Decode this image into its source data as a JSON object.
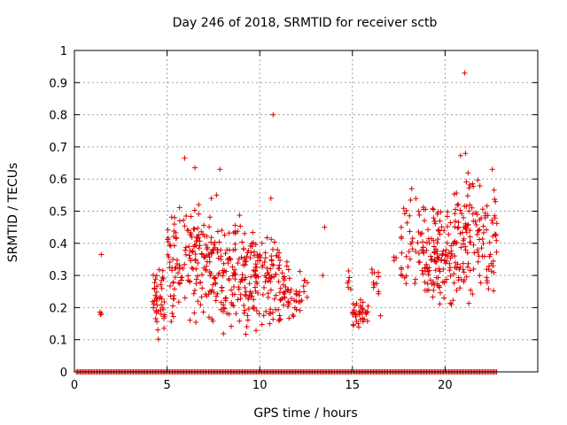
{
  "chart_data": {
    "type": "scatter",
    "title": "Day 246 of 2018, SRMTID for receiver sctb",
    "xlabel": "GPS time / hours",
    "ylabel": "SRMTID / TECUs",
    "xlim": [
      0,
      25
    ],
    "ylim": [
      0,
      1
    ],
    "grid": true,
    "x_ticks": [
      0,
      5,
      10,
      15,
      20
    ],
    "x_tick_labels": [
      "0",
      "5",
      "10",
      "15",
      "20"
    ],
    "y_ticks": [
      0,
      0.1,
      0.2,
      0.3,
      0.4,
      0.5,
      0.6,
      0.7,
      0.8,
      0.9,
      1
    ],
    "y_tick_labels": [
      "0",
      "0.1",
      "0.2",
      "0.3",
      "0.4",
      "0.5",
      "0.6",
      "0.7",
      "0.8",
      "0.9",
      "1"
    ],
    "marker": "+",
    "marker_color": "#dd0000",
    "zero_baseline": {
      "x_start": 0.1,
      "x_end": 22.8,
      "y": 0
    },
    "clusters": [
      {
        "x_range": [
          1.3,
          1.5
        ],
        "y_range": [
          0.17,
          0.19
        ],
        "count": 3
      },
      {
        "x_range": [
          4.2,
          4.9
        ],
        "y_range": [
          0.07,
          0.35
        ],
        "count": 45
      },
      {
        "x_range": [
          5.0,
          5.6
        ],
        "y_range": [
          0.14,
          0.5
        ],
        "count": 40
      },
      {
        "x_range": [
          5.6,
          6.4
        ],
        "y_range": [
          0.12,
          0.56
        ],
        "count": 40
      },
      {
        "x_range": [
          6.4,
          7.2
        ],
        "y_range": [
          0.12,
          0.55
        ],
        "count": 60
      },
      {
        "x_range": [
          7.2,
          8.3
        ],
        "y_range": [
          0.09,
          0.56
        ],
        "count": 75
      },
      {
        "x_range": [
          8.3,
          9.6
        ],
        "y_range": [
          0.09,
          0.5
        ],
        "count": 90
      },
      {
        "x_range": [
          9.6,
          11.1
        ],
        "y_range": [
          0.12,
          0.47
        ],
        "count": 100
      },
      {
        "x_range": [
          11.1,
          12.2
        ],
        "y_range": [
          0.14,
          0.36
        ],
        "count": 45
      },
      {
        "x_range": [
          12.2,
          12.6
        ],
        "y_range": [
          0.19,
          0.33
        ],
        "count": 7
      },
      {
        "x_range": [
          14.6,
          15.0
        ],
        "y_range": [
          0.22,
          0.35
        ],
        "count": 6
      },
      {
        "x_range": [
          15.0,
          15.9
        ],
        "y_range": [
          0.13,
          0.23
        ],
        "count": 35
      },
      {
        "x_range": [
          16.0,
          16.6
        ],
        "y_range": [
          0.16,
          0.39
        ],
        "count": 12
      },
      {
        "x_range": [
          17.0,
          17.4
        ],
        "y_range": [
          0.34,
          0.37
        ],
        "count": 3
      },
      {
        "x_range": [
          17.6,
          18.9
        ],
        "y_range": [
          0.25,
          0.55
        ],
        "count": 50
      },
      {
        "x_range": [
          18.9,
          20.4
        ],
        "y_range": [
          0.17,
          0.54
        ],
        "count": 110
      },
      {
        "x_range": [
          20.4,
          21.7
        ],
        "y_range": [
          0.18,
          0.68
        ],
        "count": 90
      },
      {
        "x_range": [
          21.7,
          22.8
        ],
        "y_range": [
          0.23,
          0.62
        ],
        "count": 60
      }
    ],
    "points": [
      {
        "x": 1.45,
        "y": 0.365
      },
      {
        "x": 5.95,
        "y": 0.665
      },
      {
        "x": 6.5,
        "y": 0.635
      },
      {
        "x": 7.85,
        "y": 0.63
      },
      {
        "x": 10.72,
        "y": 0.8
      },
      {
        "x": 10.6,
        "y": 0.54
      },
      {
        "x": 13.5,
        "y": 0.45
      },
      {
        "x": 13.4,
        "y": 0.3
      },
      {
        "x": 18.2,
        "y": 0.57
      },
      {
        "x": 21.05,
        "y": 0.93
      },
      {
        "x": 21.1,
        "y": 0.68
      },
      {
        "x": 22.55,
        "y": 0.63
      }
    ]
  }
}
